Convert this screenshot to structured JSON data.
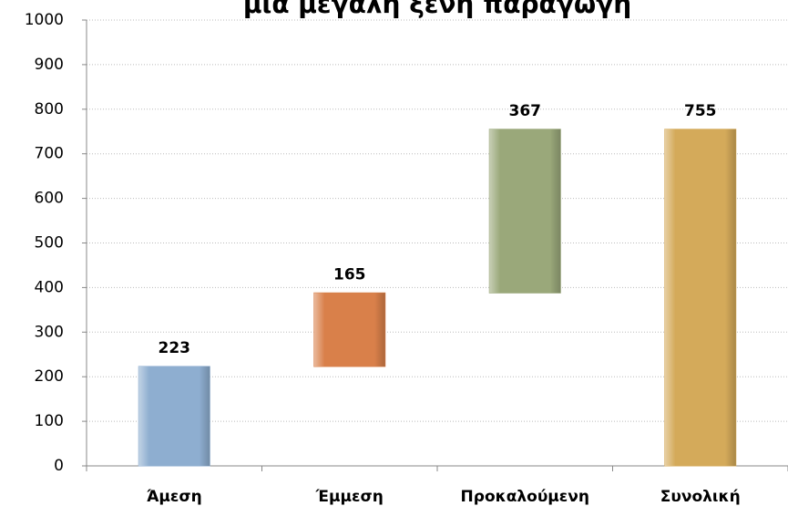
{
  "chart_data": {
    "type": "waterfall",
    "title": "μια μεγάλη ξένη παραγωγή",
    "categories": [
      "Άμεση",
      "Έμμεση",
      "Προκαλούμενη",
      "Συνολική"
    ],
    "values": [
      223,
      165,
      367,
      755
    ],
    "colors": [
      "#8eaed0",
      "#d9804a",
      "#9aa87a",
      "#d4aa5a"
    ],
    "ylim": [
      0,
      1000
    ],
    "yticks": [
      0,
      100,
      200,
      300,
      400,
      500,
      600,
      700,
      800,
      900,
      1000
    ],
    "grid": true
  }
}
